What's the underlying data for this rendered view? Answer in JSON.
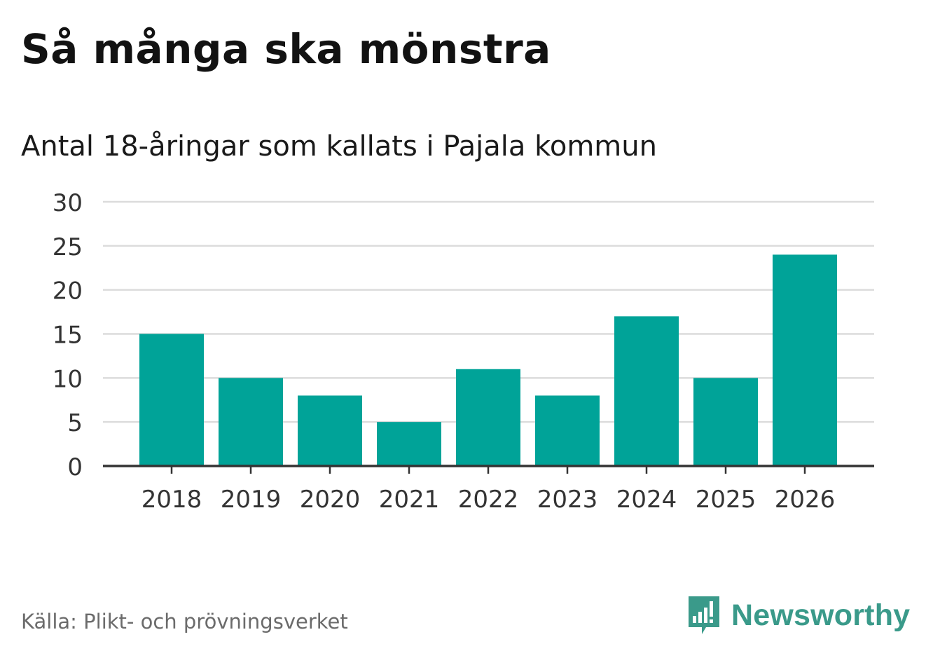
{
  "title": "Så många ska mönstra",
  "subtitle": "Antal 18-åringar som kallats i Pajala kommun",
  "source": "Källa: Plikt- och prövningsverket",
  "brand": {
    "name": "Newsworthy",
    "icon": "bar-chart-speech-bubble-icon",
    "color": "#3a9a8a"
  },
  "colors": {
    "bar": "#00a398",
    "grid": "#dcdcdc",
    "axis": "#333333",
    "tick_text": "#333333"
  },
  "chart_data": {
    "type": "bar",
    "categories": [
      "2018",
      "2019",
      "2020",
      "2021",
      "2022",
      "2023",
      "2024",
      "2025",
      "2026"
    ],
    "values": [
      15,
      10,
      8,
      5,
      11,
      8,
      17,
      10,
      24
    ],
    "ylim": [
      0,
      30
    ],
    "yticks": [
      0,
      5,
      10,
      15,
      20,
      25,
      30
    ],
    "grid": true,
    "legend": "none"
  }
}
